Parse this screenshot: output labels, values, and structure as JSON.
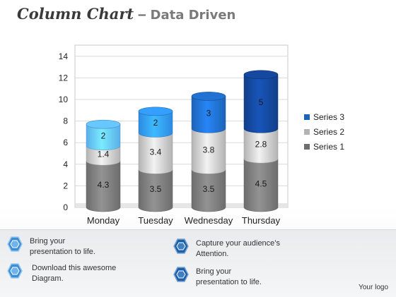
{
  "header": {
    "title": "Column Chart",
    "separator": "–",
    "subtitle": "Data Driven"
  },
  "chart_data": {
    "type": "bar",
    "stacked": true,
    "style": "3d-cylinder",
    "categories": [
      "Monday",
      "Tuesday",
      "Wednesday",
      "Thursday"
    ],
    "series": [
      {
        "name": "Series 1",
        "values": [
          4.3,
          3.5,
          3.5,
          4.5
        ]
      },
      {
        "name": "Series 2",
        "values": [
          1.4,
          3.4,
          3.8,
          2.8
        ]
      },
      {
        "name": "Series 3",
        "values": [
          2,
          2,
          3,
          5
        ]
      }
    ],
    "yticks": [
      "0",
      "2",
      "4",
      "6",
      "8",
      "10",
      "12",
      "14"
    ],
    "ylim": [
      0,
      14
    ],
    "grid": true,
    "legend": "right",
    "colors": {
      "series1": "#6d6d6d",
      "series2": "#b3b3b3",
      "series3": [
        "#5aaee8",
        "#2d8ae0",
        "#1d63b7",
        "#123f8a"
      ]
    }
  },
  "features": [
    {
      "icon": "hexagon-icon",
      "text_line1": "Bring your",
      "text_line2": "presentation to life.",
      "color": "#3a8fd6"
    },
    {
      "icon": "hexagon-icon",
      "text_line1": "Capture your audience’s",
      "text_line2": "Attention.",
      "color": "#1e5fa8"
    },
    {
      "icon": "hexagon-icon",
      "text_line1": "Download this awesome",
      "text_line2": "Diagram.",
      "color": "#3a8fd6"
    },
    {
      "icon": "hexagon-icon",
      "text_line1": "Bring your",
      "text_line2": "presentation to life.",
      "color": "#1e5fa8"
    }
  ],
  "footer": {
    "logo": "Your logo"
  }
}
